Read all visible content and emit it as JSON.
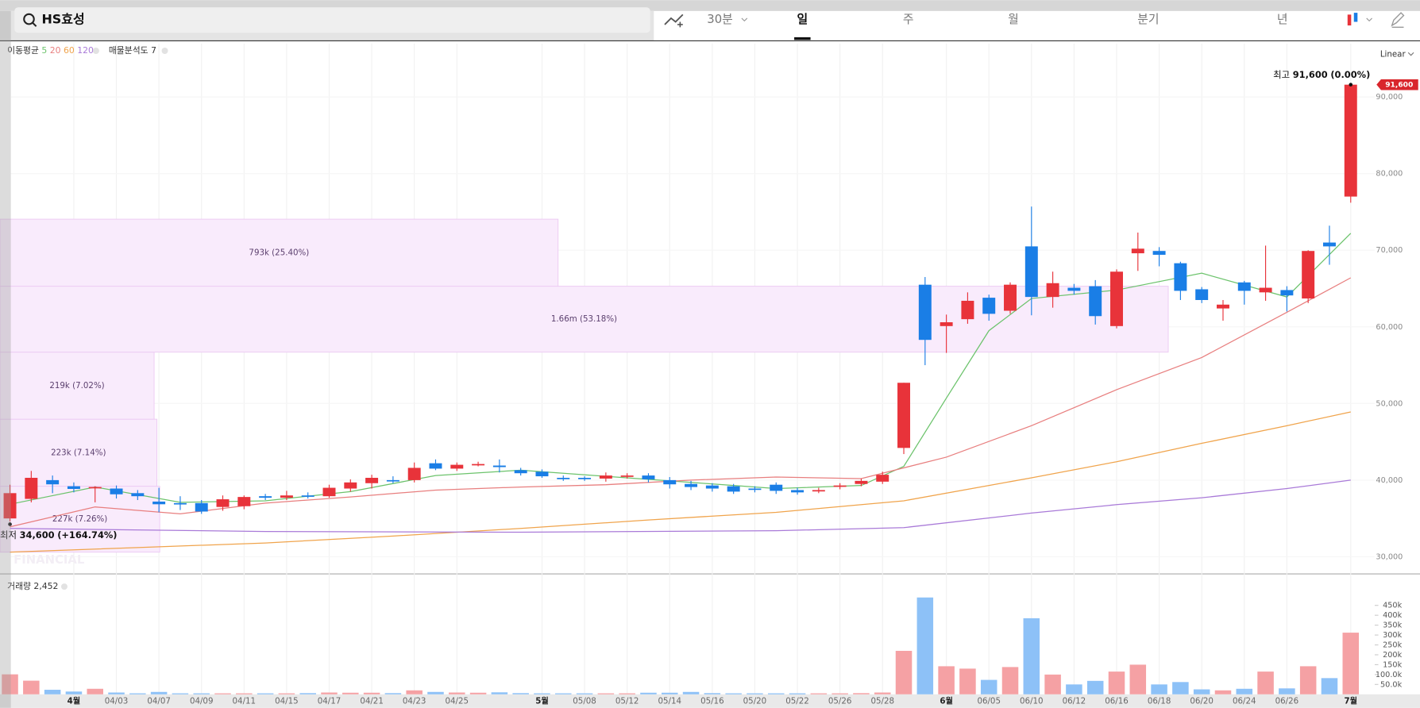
{
  "header": {
    "search": "HS효성",
    "tabs": [
      "30분",
      "일",
      "주",
      "월",
      "분기",
      "년"
    ],
    "active_tab": "일",
    "scale_mode": "Linear"
  },
  "chart_data": [
    {
      "type": "candlestick",
      "legend_title": "이동평균",
      "watermark": "FINANCIAL",
      "categories": [
        null,
        null,
        null,
        "4월",
        null,
        "04/03",
        null,
        "04/07",
        null,
        "04/09",
        null,
        "04/11",
        null,
        "04/15",
        null,
        "04/17",
        null,
        "04/21",
        null,
        "04/23",
        null,
        "04/25",
        null,
        null,
        null,
        "5월",
        null,
        "05/08",
        null,
        "05/12",
        null,
        "05/14",
        null,
        "05/16",
        null,
        "05/20",
        null,
        "05/22",
        null,
        "05/26",
        null,
        "05/28",
        null,
        null,
        "6월",
        null,
        "06/05",
        null,
        "06/10",
        null,
        "06/12",
        null,
        "06/16",
        null,
        "06/18",
        null,
        "06/20",
        null,
        "06/24",
        null,
        "06/26",
        null,
        null,
        "7월"
      ],
      "open": [
        35000,
        37550,
        40000,
        39200,
        39000,
        38900,
        38300,
        37200,
        37000,
        37000,
        36500,
        36600,
        37900,
        37700,
        38000,
        37900,
        38900,
        39600,
        40000,
        40000,
        42200,
        41500,
        42000,
        41900,
        41300,
        41100,
        40300,
        40300,
        40200,
        40500,
        40600,
        40000,
        39500,
        39300,
        39200,
        38900,
        39400,
        38700,
        38600,
        39200,
        39500,
        39800,
        44200,
        65500,
        60100,
        61000,
        63800,
        62100,
        70500,
        63900,
        65100,
        65300,
        60100,
        69600,
        69900,
        68300,
        64900,
        62400,
        65800,
        64500,
        64800,
        63700,
        71000,
        77000
      ],
      "high": [
        39400,
        41200,
        40600,
        39700,
        39200,
        39300,
        38700,
        39000,
        37900,
        37400,
        38000,
        38000,
        38200,
        38600,
        38400,
        39400,
        40100,
        40700,
        40500,
        42300,
        42700,
        42300,
        42400,
        42700,
        41600,
        41400,
        40600,
        40500,
        41000,
        40900,
        40900,
        40400,
        39900,
        39600,
        39500,
        39200,
        39700,
        39000,
        39000,
        39600,
        40200,
        41100,
        52700,
        66500,
        61600,
        64500,
        64200,
        65800,
        75700,
        67200,
        65600,
        66100,
        67500,
        72300,
        70400,
        68500,
        65200,
        63500,
        66000,
        70600,
        65300,
        70000,
        73200,
        91600
      ],
      "low": [
        34600,
        37100,
        38300,
        38400,
        37100,
        37600,
        37400,
        35800,
        36100,
        35600,
        36000,
        36200,
        37400,
        37400,
        37600,
        37700,
        38500,
        38900,
        39600,
        39700,
        41300,
        41200,
        41800,
        41000,
        40600,
        40300,
        39900,
        39900,
        39800,
        40200,
        39700,
        38900,
        38700,
        38500,
        38200,
        38400,
        38200,
        38100,
        38300,
        38800,
        39200,
        39500,
        43400,
        55000,
        56600,
        60400,
        60800,
        61700,
        61500,
        62500,
        64200,
        60300,
        59800,
        67300,
        67900,
        63500,
        63100,
        60800,
        62900,
        63400,
        62000,
        63100,
        68100,
        76200
      ],
      "close": [
        38300,
        40300,
        39450,
        38850,
        39100,
        38150,
        37900,
        36850,
        36900,
        35900,
        37500,
        37800,
        37700,
        38000,
        37900,
        39000,
        39700,
        40300,
        39900,
        41600,
        41500,
        42000,
        42100,
        41700,
        40900,
        40500,
        40200,
        40200,
        40600,
        40600,
        40100,
        39450,
        39100,
        38900,
        38500,
        38800,
        38600,
        38400,
        38700,
        39300,
        39900,
        40700,
        52700,
        58300,
        60600,
        63400,
        61700,
        65500,
        63900,
        65700,
        64700,
        61400,
        67200,
        70200,
        69400,
        64700,
        63500,
        62900,
        64700,
        65100,
        64100,
        69900,
        70500,
        91600
      ],
      "up_color": "#e8333a",
      "down_color": "#1a7ee6",
      "ylim": [
        27900,
        97000
      ],
      "yticks": [
        {
          "value": 30000,
          "label": "30,000"
        },
        {
          "value": 40000,
          "label": "40,000"
        },
        {
          "value": 50000,
          "label": "50,000"
        },
        {
          "value": 60000,
          "label": "60,000"
        },
        {
          "value": 70000,
          "label": "70,000"
        },
        {
          "value": 80000,
          "label": "80,000"
        },
        {
          "value": 90000,
          "label": "90,000"
        }
      ],
      "series": [
        {
          "name": "5",
          "color": "#6cc36c",
          "x": [
            0,
            4,
            8,
            12,
            16,
            20,
            24,
            28,
            32,
            36,
            40,
            42,
            44,
            46,
            48,
            52,
            56,
            60,
            63
          ],
          "values": [
            36850,
            39100,
            37100,
            37300,
            38500,
            40600,
            41300,
            40500,
            39700,
            38900,
            39300,
            41800,
            50700,
            59500,
            63700,
            64800,
            67000,
            63900,
            72200
          ]
        },
        {
          "name": "20",
          "color": "#e87f7f",
          "x": [
            0,
            4,
            8,
            12,
            16,
            20,
            24,
            28,
            32,
            36,
            40,
            44,
            48,
            52,
            56,
            60,
            63
          ],
          "values": [
            33900,
            36500,
            35600,
            37000,
            37800,
            38700,
            39100,
            39400,
            40000,
            40400,
            40200,
            43000,
            47100,
            51800,
            56000,
            61900,
            66400
          ]
        },
        {
          "name": "60",
          "color": "#f0a44c",
          "x": [
            0,
            6,
            12,
            18,
            24,
            30,
            36,
            42,
            48,
            52,
            56,
            60,
            63
          ],
          "values": [
            30600,
            31200,
            31800,
            32700,
            33700,
            34800,
            35800,
            37300,
            40300,
            42400,
            44800,
            47100,
            48900
          ]
        },
        {
          "name": "120",
          "color": "#a97ad8",
          "x": [
            0,
            12,
            24,
            36,
            42,
            48,
            52,
            56,
            60,
            63
          ],
          "values": [
            33700,
            33300,
            33200,
            33400,
            33800,
            35700,
            36800,
            37700,
            38900,
            40000
          ]
        }
      ],
      "volume_profile": {
        "title": "매물분석도 7",
        "color": "#f9ebfc",
        "edge_color": "#ecc9f3",
        "label_color": "#5b3f6e",
        "price_edges": [
          30600,
          39200,
          47950,
          56700,
          65300,
          74050,
          82800,
          91400
        ],
        "volumes": [
          227000,
          223000,
          219000,
          1660000,
          793000,
          null,
          null
        ],
        "value_labels": [
          "227k (7.26%)",
          "223k (7.14%)",
          "219k (7.02%)",
          "1.66m (53.18%)",
          "793k (25.40%)",
          null,
          null
        ]
      },
      "annotations": {
        "high": {
          "label": "최고",
          "value": 91600,
          "value_label": "91,600",
          "change": 0,
          "change_label": "(0.00%)",
          "index": 63
        },
        "low": {
          "label": "최저",
          "value": 34600,
          "value_label": "34,600",
          "change": 164.74,
          "change_label": "(+164.74%)",
          "index": 0
        }
      },
      "price_tag": {
        "value": 91600,
        "label": "91,600",
        "color": "#d9262c"
      }
    },
    {
      "type": "bar",
      "title": "거래량 2,452",
      "up_color": "#f5a1a4",
      "down_color": "#8dc1f7",
      "values": [
        101000,
        69000,
        23000,
        14000,
        28000,
        9000,
        5000,
        12000,
        5000,
        5000,
        5000,
        5000,
        5000,
        5000,
        6000,
        9000,
        8000,
        8000,
        6000,
        20000,
        12000,
        9000,
        8000,
        10000,
        6000,
        5000,
        5000,
        5000,
        5000,
        5000,
        8000,
        8000,
        12000,
        6000,
        5000,
        5000,
        5000,
        5000,
        5000,
        5000,
        6000,
        9000,
        220000,
        490000,
        142000,
        130000,
        73000,
        138000,
        385000,
        100000,
        50000,
        68000,
        115000,
        150000,
        50000,
        62000,
        25000,
        20000,
        28000,
        115000,
        30000,
        142000,
        82000,
        312000
      ],
      "ylim": [
        0,
        600000
      ],
      "yticks": [
        {
          "value": 50000,
          "label": "50.0k"
        },
        {
          "value": 100000,
          "label": "100.0k"
        },
        {
          "value": 150000,
          "label": "150k"
        },
        {
          "value": 200000,
          "label": "200k"
        },
        {
          "value": 250000,
          "label": "250k"
        },
        {
          "value": 300000,
          "label": "300k"
        },
        {
          "value": 350000,
          "label": "350k"
        },
        {
          "value": 400000,
          "label": "400k"
        },
        {
          "value": 450000,
          "label": "450k"
        }
      ]
    }
  ]
}
